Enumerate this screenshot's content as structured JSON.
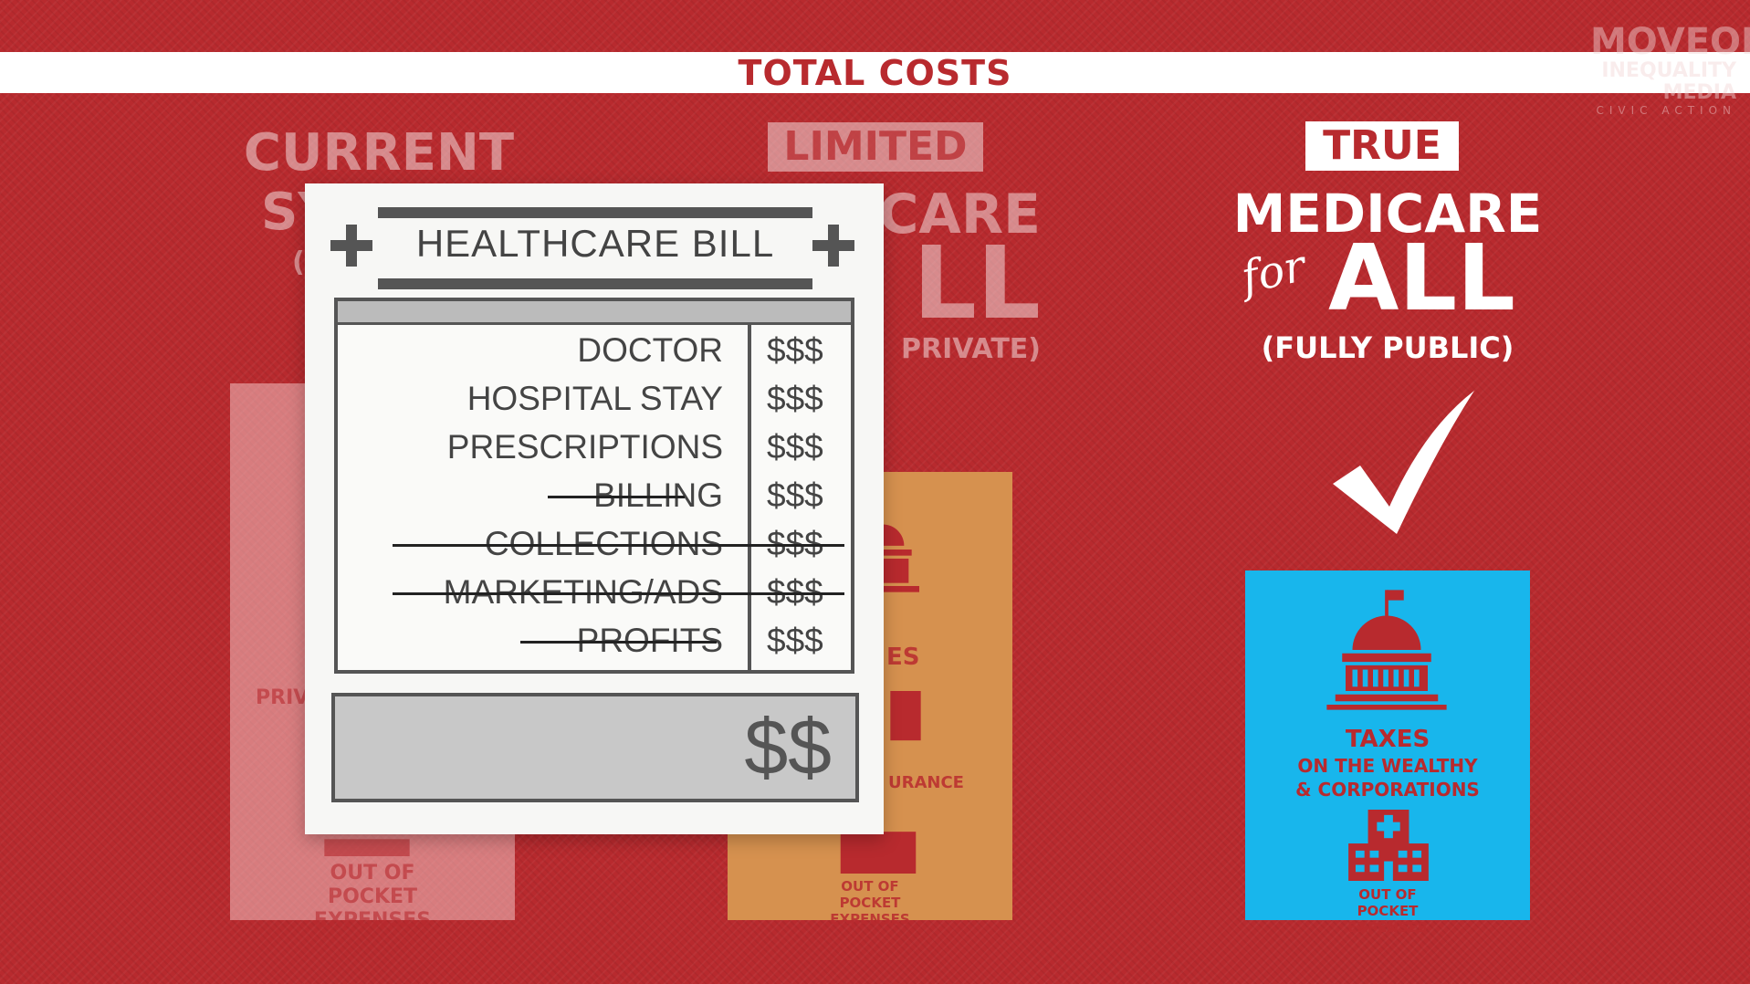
{
  "banner": {
    "title": "TOTAL COSTS"
  },
  "logo": {
    "line1": "MOVEON",
    "line2": "INEQUALITY",
    "line3": "MEDIA",
    "line4": "CIVIC ACTION"
  },
  "columns": {
    "current": {
      "line1": "CURRENT",
      "line2": "SY",
      "line3": "(",
      "panel_private": "PRIV",
      "panel_bottom": "OUT OF POCKET EXPENSES"
    },
    "limited": {
      "tag": "LIMITED",
      "line2": "CARE",
      "line3": "LL",
      "line4": "PRIVATE)",
      "panel_taxes": "ES",
      "panel_insurance": "URANCE",
      "panel_bottom": "OUT OF POCKET EXPENSES"
    },
    "true": {
      "tag": "TRUE",
      "line2": "MEDICARE",
      "for": "for",
      "all": "ALL",
      "line4": "(FULLY PUBLIC)",
      "panel_taxes": "TAXES",
      "panel_taxes_sub1": "ON THE WEALTHY",
      "panel_taxes_sub2": "& CORPORATIONS",
      "panel_bottom": "OUT OF POCKET EXPENSES"
    }
  },
  "bill": {
    "title": "HEALTHCARE BILL",
    "items": [
      {
        "name": "DOCTOR",
        "cost": "$$$",
        "struck": false
      },
      {
        "name": "HOSPITAL STAY",
        "cost": "$$$",
        "struck": false
      },
      {
        "name": "PRESCRIPTIONS",
        "cost": "$$$",
        "struck": false
      },
      {
        "name": "BILLING",
        "cost": "$$$",
        "struck": true
      },
      {
        "name": "COLLECTIONS",
        "cost": "$$$",
        "struck": true
      },
      {
        "name": "MARKETING/ADS",
        "cost": "$$$",
        "struck": true
      },
      {
        "name": "PROFITS",
        "cost": "$$$",
        "struck": true
      }
    ],
    "total": "$$"
  },
  "colors": {
    "background": "#b82a2e",
    "limited_panel": "#d6914f",
    "true_panel": "#18b6ec"
  },
  "icons": [
    "checkmark-icon",
    "capitol-building-icon",
    "office-building-icon",
    "hospital-icon",
    "plus-icon"
  ]
}
